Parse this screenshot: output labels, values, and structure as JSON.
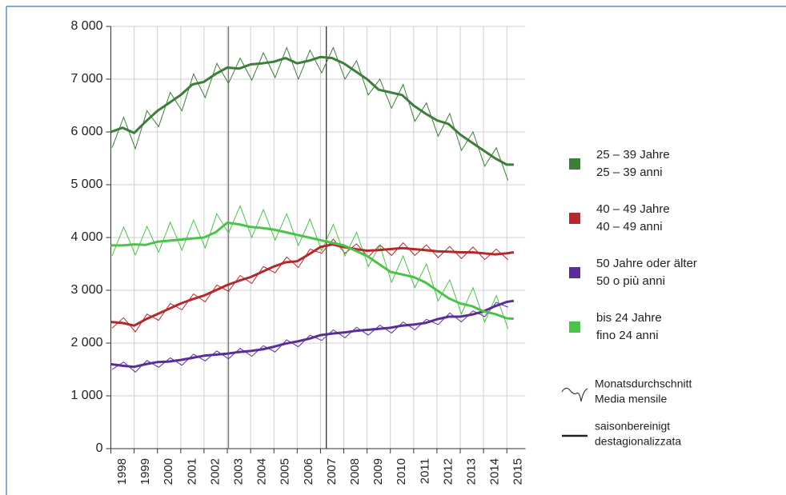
{
  "chart_data": {
    "type": "line",
    "x": [
      1998,
      1998.5,
      1999,
      1999.5,
      2000,
      2000.5,
      2001,
      2001.5,
      2002,
      2002.5,
      2003,
      2003.5,
      2004,
      2004.5,
      2005,
      2005.5,
      2006,
      2006.5,
      2007,
      2007.5,
      2008,
      2008.5,
      2009,
      2009.5,
      2010,
      2010.5,
      2011,
      2011.5,
      2012,
      2012.5,
      2013,
      2013.5,
      2014,
      2014.5,
      2015,
      2015.3
    ],
    "monthly_x": [
      1998.05,
      1998.55,
      1999.05,
      1999.55,
      2000.05,
      2000.55,
      2001.05,
      2001.55,
      2002.05,
      2002.55,
      2003.05,
      2003.55,
      2004.05,
      2004.55,
      2005.05,
      2005.55,
      2006.05,
      2006.55,
      2007.05,
      2007.55,
      2008.05,
      2008.55,
      2009.05,
      2009.55,
      2010.05,
      2010.55,
      2011.05,
      2011.55,
      2012.05,
      2012.55,
      2013.05,
      2013.55,
      2014.05,
      2014.55,
      2015.05
    ],
    "series": [
      {
        "name": "25 – 39 Jahre",
        "name_it": "25 – 39 anni",
        "color": "#3e7d3a",
        "values": [
          6000,
          6080,
          5980,
          6200,
          6400,
          6550,
          6700,
          6900,
          6950,
          7100,
          7220,
          7200,
          7280,
          7300,
          7330,
          7400,
          7300,
          7350,
          7420,
          7400,
          7300,
          7150,
          7000,
          6800,
          6750,
          6700,
          6500,
          6350,
          6220,
          6150,
          5950,
          5800,
          5650,
          5500,
          5380,
          5380
        ],
        "monthly_values": [
          5700,
          6280,
          5680,
          6400,
          6100,
          6750,
          6400,
          7100,
          6650,
          7300,
          6920,
          7400,
          6980,
          7500,
          7030,
          7600,
          7000,
          7550,
          7120,
          7600,
          7000,
          7350,
          6700,
          7000,
          6450,
          6900,
          6200,
          6550,
          5920,
          6350,
          5650,
          6000,
          5350,
          5700,
          5080
        ]
      },
      {
        "name": "40 – 49 Jahre",
        "name_it": "40 – 49 anni",
        "color": "#b02a2e",
        "values": [
          2400,
          2380,
          2330,
          2450,
          2550,
          2650,
          2750,
          2830,
          2900,
          3000,
          3100,
          3180,
          3250,
          3350,
          3450,
          3530,
          3550,
          3680,
          3820,
          3870,
          3820,
          3780,
          3750,
          3760,
          3780,
          3800,
          3780,
          3760,
          3740,
          3730,
          3720,
          3720,
          3700,
          3680,
          3700,
          3720
        ],
        "monthly_values": [
          2280,
          2480,
          2210,
          2550,
          2430,
          2750,
          2630,
          2930,
          2780,
          3100,
          2980,
          3280,
          3130,
          3450,
          3330,
          3630,
          3430,
          3780,
          3700,
          3970,
          3700,
          3880,
          3630,
          3860,
          3660,
          3900,
          3660,
          3860,
          3620,
          3830,
          3600,
          3820,
          3580,
          3780,
          3580
        ]
      },
      {
        "name": "50 Jahre oder älter",
        "name_it": "50 o più anni",
        "color": "#5a2d98",
        "values": [
          1600,
          1570,
          1550,
          1600,
          1640,
          1650,
          1680,
          1720,
          1760,
          1780,
          1800,
          1830,
          1850,
          1880,
          1930,
          1990,
          2030,
          2080,
          2150,
          2180,
          2200,
          2230,
          2250,
          2270,
          2290,
          2330,
          2350,
          2380,
          2450,
          2500,
          2500,
          2540,
          2600,
          2700,
          2780,
          2800
        ],
        "monthly_values": [
          1500,
          1640,
          1450,
          1670,
          1540,
          1720,
          1580,
          1790,
          1660,
          1850,
          1700,
          1900,
          1750,
          1950,
          1830,
          2060,
          1930,
          2150,
          2050,
          2250,
          2100,
          2300,
          2150,
          2340,
          2190,
          2400,
          2250,
          2450,
          2350,
          2570,
          2400,
          2610,
          2500,
          2770,
          2680
        ]
      },
      {
        "name": "bis 24 Jahre",
        "name_it": "fino 24 anni",
        "color": "#4cc24a",
        "values": [
          3850,
          3850,
          3870,
          3860,
          3920,
          3940,
          3960,
          3980,
          4000,
          4100,
          4280,
          4250,
          4200,
          4180,
          4150,
          4100,
          4050,
          4000,
          3950,
          3900,
          3850,
          3750,
          3650,
          3500,
          3350,
          3300,
          3250,
          3150,
          3000,
          2850,
          2750,
          2700,
          2600,
          2550,
          2470,
          2460
        ],
        "monthly_values": [
          3650,
          4200,
          3670,
          4210,
          3720,
          4290,
          3760,
          4330,
          3800,
          4450,
          4080,
          4600,
          4000,
          4530,
          3950,
          4450,
          3850,
          4350,
          3750,
          4250,
          3650,
          4100,
          3450,
          3850,
          3150,
          3650,
          3050,
          3500,
          2800,
          3200,
          2550,
          3050,
          2400,
          2900,
          2270
        ]
      }
    ],
    "xlim": [
      1998,
      2015.8
    ],
    "xticks": [
      {
        "value": 1998.5,
        "label": "1998"
      },
      {
        "value": 1999.5,
        "label": "1999"
      },
      {
        "value": 2000.5,
        "label": "2000"
      },
      {
        "value": 2001.5,
        "label": "2001"
      },
      {
        "value": 2002.5,
        "label": "2002"
      },
      {
        "value": 2003.5,
        "label": "2003"
      },
      {
        "value": 2004.5,
        "label": "2004"
      },
      {
        "value": 2005.5,
        "label": "2005"
      },
      {
        "value": 2006.5,
        "label": "2006"
      },
      {
        "value": 2007.5,
        "label": "2007"
      },
      {
        "value": 2008.5,
        "label": "2008"
      },
      {
        "value": 2009.5,
        "label": "2009"
      },
      {
        "value": 2010.5,
        "label": "2010"
      },
      {
        "value": 2011.5,
        "label": "2011"
      },
      {
        "value": 2012.5,
        "label": "2012"
      },
      {
        "value": 2013.5,
        "label": "2013"
      },
      {
        "value": 2014.5,
        "label": "2014"
      },
      {
        "value": 2015.5,
        "label": "2015"
      }
    ],
    "ylim": [
      0,
      8000
    ],
    "yticks": [
      0,
      {
        "value": 1000,
        "label": "1 000"
      },
      {
        "value": 2000,
        "label": "2 000"
      },
      {
        "value": 3000,
        "label": "3 000"
      },
      {
        "value": 4000,
        "label": "4 000"
      },
      {
        "value": 5000,
        "label": "5 000"
      },
      {
        "value": 6000,
        "label": "6 000"
      },
      {
        "value": 7000,
        "label": "7 000"
      },
      {
        "value": 8000,
        "label": "8 000"
      }
    ],
    "grid": true,
    "markers_x": [
      2003.05,
      2007.25
    ],
    "line_legend": [
      {
        "label": "Monatsdurchschnitt",
        "label_it": "Media mensile"
      },
      {
        "label": "saisonbereinigt",
        "label_it": "destagionalizzata"
      }
    ]
  }
}
